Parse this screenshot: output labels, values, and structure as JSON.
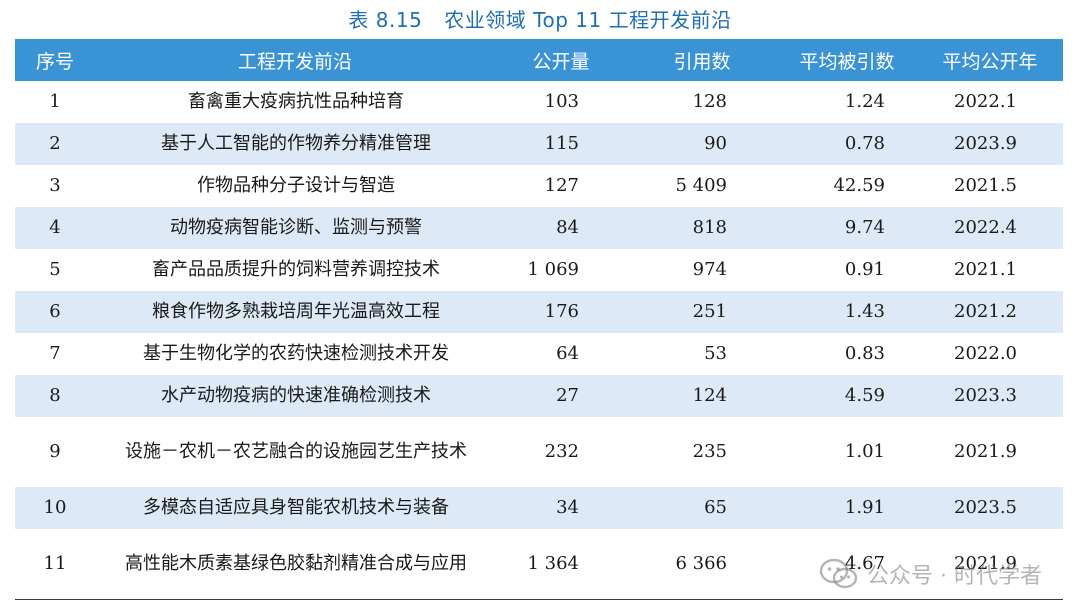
{
  "caption": {
    "number": "表 8.15",
    "title": "农业领域 Top 11 工程开发前沿"
  },
  "table": {
    "headers": [
      "序号",
      "工程开发前沿",
      "公开量",
      "引用数",
      "平均被引数",
      "平均公开年"
    ],
    "rows": [
      {
        "no": "1",
        "topic": "畜禽重大疫病抗性品种培育",
        "publications": "103",
        "citations": "128",
        "avg_citations": "1.24",
        "avg_year": "2022.1"
      },
      {
        "no": "2",
        "topic": "基于人工智能的作物养分精准管理",
        "publications": "115",
        "citations": "90",
        "avg_citations": "0.78",
        "avg_year": "2023.9"
      },
      {
        "no": "3",
        "topic": "作物品种分子设计与智造",
        "publications": "127",
        "citations": "5 409",
        "avg_citations": "42.59",
        "avg_year": "2021.5"
      },
      {
        "no": "4",
        "topic": "动物疫病智能诊断、监测与预警",
        "publications": "84",
        "citations": "818",
        "avg_citations": "9.74",
        "avg_year": "2022.4"
      },
      {
        "no": "5",
        "topic": "畜产品品质提升的饲料营养调控技术",
        "publications": "1 069",
        "citations": "974",
        "avg_citations": "0.91",
        "avg_year": "2021.1"
      },
      {
        "no": "6",
        "topic": "粮食作物多熟栽培周年光温高效工程",
        "publications": "176",
        "citations": "251",
        "avg_citations": "1.43",
        "avg_year": "2021.2"
      },
      {
        "no": "7",
        "topic": "基于生物化学的农药快速检测技术开发",
        "publications": "64",
        "citations": "53",
        "avg_citations": "0.83",
        "avg_year": "2022.0"
      },
      {
        "no": "8",
        "topic": "水产动物疫病的快速准确检测技术",
        "publications": "27",
        "citations": "124",
        "avg_citations": "4.59",
        "avg_year": "2023.3"
      },
      {
        "no": "9",
        "topic": "设施－农机－农艺融合的设施园艺生产技术",
        "publications": "232",
        "citations": "235",
        "avg_citations": "1.01",
        "avg_year": "2021.9"
      },
      {
        "no": "10",
        "topic": "多模态自适应具身智能农机技术与装备",
        "publications": "34",
        "citations": "65",
        "avg_citations": "1.91",
        "avg_year": "2023.5"
      },
      {
        "no": "11",
        "topic": "高性能木质素基绿色胶黏剂精准合成与应用",
        "publications": "1 364",
        "citations": "6 366",
        "avg_citations": "4.67",
        "avg_year": "2021.9"
      }
    ]
  },
  "watermark": {
    "text": "公众号 · 时代学者",
    "icon": "wechat-icon"
  },
  "colors": {
    "header_bg": "#3a93d5",
    "alt_row_bg": "#dde9f6",
    "caption": "#1f6fb5"
  }
}
